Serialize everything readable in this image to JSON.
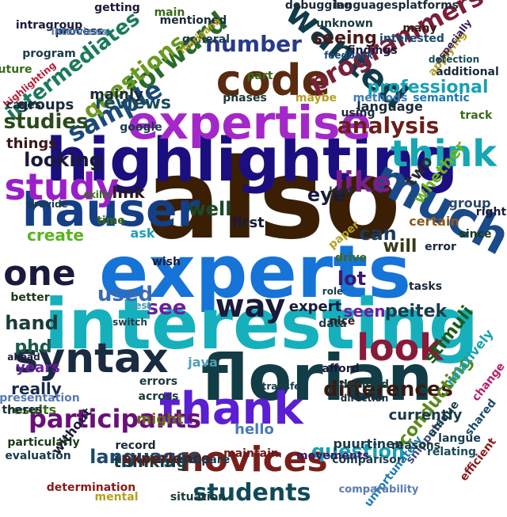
{
  "words": [
    {
      "text": "also",
      "color": "#3a1f04"
    },
    {
      "text": "experts",
      "color": "#1673d8"
    },
    {
      "text": "interesting",
      "color": "#16b0bd"
    },
    {
      "text": "highlighting",
      "color": "#1b0f80"
    },
    {
      "text": "florian",
      "color": "#123c46"
    },
    {
      "text": "expertise",
      "color": "#a428c8"
    },
    {
      "text": "much",
      "color": "#1a4a8a"
    },
    {
      "text": "hauser",
      "color": "#143e86"
    },
    {
      "text": "code",
      "color": "#5a2b10"
    },
    {
      "text": "think",
      "color": "#17a6b4"
    },
    {
      "text": "thank",
      "color": "#5a1fd2"
    },
    {
      "text": "syntax",
      "color": "#1a2a40"
    },
    {
      "text": "study",
      "color": "#9a1fc8"
    },
    {
      "text": "novices",
      "color": "#7a1e1a"
    },
    {
      "text": "look",
      "color": "#8a1a3a"
    },
    {
      "text": "wanted",
      "color": "#113a4c"
    },
    {
      "text": "one",
      "color": "#1a1a40"
    },
    {
      "text": "way",
      "color": "#1a1a3a"
    },
    {
      "text": "like",
      "color": "#7a1f8a"
    },
    {
      "text": "forward",
      "color": "#2a6a2a"
    },
    {
      "text": "sample",
      "color": "#1a4a7a"
    },
    {
      "text": "participants",
      "color": "#6a0f7a"
    },
    {
      "text": "students",
      "color": "#0f4a5a"
    },
    {
      "text": "differences",
      "color": "#3a1a10"
    },
    {
      "text": "questions",
      "color": "#6a9a1f"
    },
    {
      "text": "programmers",
      "color": "#7a1f3a"
    },
    {
      "text": "analysis",
      "color": "#6a1f1a"
    },
    {
      "text": "number",
      "color": "#2a3a8a"
    },
    {
      "text": "intermediates",
      "color": "#1a7a5a"
    },
    {
      "text": "professional",
      "color": "#1aa0b4"
    },
    {
      "text": "languages",
      "color": "#1a4a6a"
    },
    {
      "text": "question",
      "color": "#1aa0b4"
    },
    {
      "text": "conducting",
      "color": "#5a8a1a"
    },
    {
      "text": "studies",
      "color": "#2a4a1a"
    },
    {
      "text": "looking",
      "color": "#1a1a3a"
    },
    {
      "text": "seeing",
      "color": "#4a1a1a"
    },
    {
      "text": "peitek",
      "color": "#1a3a4a"
    },
    {
      "text": "used",
      "color": "#3a6ab4"
    },
    {
      "text": "see",
      "color": "#6a1fa0"
    },
    {
      "text": "can",
      "color": "#1a3a5a"
    },
    {
      "text": "eye",
      "color": "#1a1a3a"
    },
    {
      "text": "well",
      "color": "#1a4a2a"
    },
    {
      "text": "hand",
      "color": "#1a3a3a"
    },
    {
      "text": "phd",
      "color": "#1a5a4a"
    },
    {
      "text": "lot",
      "color": "#3a1a6a"
    },
    {
      "text": "will",
      "color": "#3a3a1a"
    },
    {
      "text": "reviews",
      "color": "#1a4a5a"
    },
    {
      "text": "stimuli",
      "color": "#1a5a1a"
    },
    {
      "text": "whether",
      "color": "#6ab41f"
    },
    {
      "text": "two",
      "color": "#2a2a2a"
    },
    {
      "text": "really",
      "color": "#1a2a4a"
    },
    {
      "text": "expert",
      "color": "#1a1a3a"
    },
    {
      "text": "thinking",
      "color": "#1a3a3a"
    },
    {
      "text": "experience",
      "color": "#5a1a1a"
    },
    {
      "text": "create",
      "color": "#5ab41f"
    },
    {
      "text": "link",
      "color": "#2a1a1a"
    },
    {
      "text": "years",
      "color": "#6a1fa0"
    },
    {
      "text": "relatively",
      "color": "#1aa0b4"
    },
    {
      "text": "currently",
      "color": "#1a3a4a"
    },
    {
      "text": "certain",
      "color": "#8a5a1a"
    },
    {
      "text": "mainly",
      "color": "#1a2a3a"
    },
    {
      "text": "groups",
      "color": "#1a2a3a"
    },
    {
      "text": "things",
      "color": "#3a1a1a"
    },
    {
      "text": "first",
      "color": "#1a1a3a"
    },
    {
      "text": "seen",
      "color": "#6a1fa0"
    },
    {
      "text": "language",
      "color": "#1a2a3a"
    },
    {
      "text": "might",
      "color": "#6a6a1a"
    },
    {
      "text": "java",
      "color": "#4aa0b4"
    },
    {
      "text": "hello",
      "color": "#4a7ab4"
    },
    {
      "text": "without",
      "color": "#1a1a3a"
    },
    {
      "text": "results",
      "color": "#3a6a1a"
    },
    {
      "text": "ask",
      "color": "#1aa0b4"
    },
    {
      "text": "comparison",
      "color": "#1a3a4a"
    },
    {
      "text": "puurtinen",
      "color": "#1a3a4a"
    },
    {
      "text": "maintain",
      "color": "#6a1a1a"
    },
    {
      "text": "movements",
      "color": "#3a1a5a"
    },
    {
      "text": "compare",
      "color": "#1a3a4a"
    },
    {
      "text": "situation",
      "color": "#1a3a3a"
    },
    {
      "text": "mental",
      "color": "#b4a01f"
    },
    {
      "text": "determination",
      "color": "#8a1a1a"
    },
    {
      "text": "unfortunately",
      "color": "#1a7ab4"
    },
    {
      "text": "comparability",
      "color": "#5a7ab4"
    },
    {
      "text": "snippets",
      "color": "#3a4a7a"
    },
    {
      "text": "reasons",
      "color": "#1a3a3a"
    },
    {
      "text": "relating",
      "color": "#1a4a5a"
    },
    {
      "text": "efficient",
      "color": "#8a1a1a"
    },
    {
      "text": "unique",
      "color": "#1a3a4a"
    },
    {
      "text": "shared",
      "color": "#1a4a6a"
    },
    {
      "text": "change",
      "color": "#b41f6a"
    },
    {
      "text": "langue",
      "color": "#1a3a4a"
    },
    {
      "text": "group",
      "color": "#2a4a6a"
    },
    {
      "text": "error",
      "color": "#1a2a3a"
    },
    {
      "text": "right",
      "color": "#1a1a3a"
    },
    {
      "text": "since",
      "color": "#1a3a1a"
    },
    {
      "text": "decided",
      "color": "#1a3a3a"
    },
    {
      "text": "across",
      "color": "#1a3a3a"
    },
    {
      "text": "errors",
      "color": "#1a3a3a"
    },
    {
      "text": "record",
      "color": "#1a2a3a"
    },
    {
      "text": "particularly",
      "color": "#1a3a1a"
    },
    {
      "text": "evaluation",
      "color": "#1a3a4a"
    },
    {
      "text": "presentation",
      "color": "#5a7ab4"
    },
    {
      "text": "theres",
      "color": "#1a2a3a"
    },
    {
      "text": "programmers2",
      "color": "#7a1f3a"
    },
    {
      "text": "getting",
      "color": "#1a1a3a"
    },
    {
      "text": "mentioned",
      "color": "#1a2a3a"
    },
    {
      "text": "general",
      "color": "#1a3a4a"
    },
    {
      "text": "process",
      "color": "#1a2a3a"
    },
    {
      "text": "intragroup",
      "color": "#1a1a3a"
    },
    {
      "text": "program",
      "color": "#1a3a4a"
    },
    {
      "text": "interviews",
      "color": "#4a7ab4"
    },
    {
      "text": "main",
      "color": "#3a6a1a"
    },
    {
      "text": "marjaana",
      "color": "#b4a01f"
    },
    {
      "text": "languagesplatforms",
      "color": "#1a2a3a"
    },
    {
      "text": "debugging",
      "color": "#1a2a3a"
    },
    {
      "text": "unknown",
      "color": "#1a3a3a"
    },
    {
      "text": "many",
      "color": "#3a1a1a"
    },
    {
      "text": "findings",
      "color": "#1a1a3a"
    },
    {
      "text": "interested",
      "color": "#1a4a6a"
    },
    {
      "text": "feedback",
      "color": "#1a4a7a"
    },
    {
      "text": "applying",
      "color": "#b4a01f"
    },
    {
      "text": "especially",
      "color": "#3a1a5a"
    },
    {
      "text": "detection",
      "color": "#1a4a5a"
    },
    {
      "text": "additional",
      "color": "#1a2a3a"
    },
    {
      "text": "future",
      "color": "#3a6a1a"
    },
    {
      "text": "highlighting2",
      "color": "#b41f3a"
    },
    {
      "text": "cases",
      "color": "#1a2a3a"
    },
    {
      "text": "methods",
      "color": "#3a7ab4"
    },
    {
      "text": "semantic",
      "color": "#1a7ab4"
    },
    {
      "text": "maybe",
      "color": "#b4a01f"
    },
    {
      "text": "using",
      "color": "#1a2a3a"
    },
    {
      "text": "google",
      "color": "#1a3a4a"
    },
    {
      "text": "phases",
      "color": "#1a3a3a"
    },
    {
      "text": "part",
      "color": "#3a6a1a"
    },
    {
      "text": "track",
      "color": "#3a6a1a"
    },
    {
      "text": "data",
      "color": "#1a3a4a"
    },
    {
      "text": "role",
      "color": "#1a3a4a"
    },
    {
      "text": "kind",
      "color": "#1a2a3a"
    },
    {
      "text": "nice",
      "color": "#3a1a1a"
    },
    {
      "text": "drive",
      "color": "#3a6a1a"
    },
    {
      "text": "paper",
      "color": "#b4a01f"
    },
    {
      "text": "afford",
      "color": "#1a1a3a"
    },
    {
      "text": "transfer",
      "color": "#1a3a4a"
    },
    {
      "text": "direction",
      "color": "#1a2a3a"
    },
    {
      "text": "tasks",
      "color": "#1a2a3a"
    },
    {
      "text": "test",
      "color": "#3aa0b4"
    },
    {
      "text": "switch",
      "color": "#1a3a4a"
    },
    {
      "text": "better",
      "color": "#1a3a1a"
    },
    {
      "text": "wish",
      "color": "#1a1a3a"
    },
    {
      "text": "time",
      "color": "#3a6a1a"
    },
    {
      "text": "skills",
      "color": "#3a6a1a"
    },
    {
      "text": "provide",
      "color": "#1a3a4a"
    },
    {
      "text": "ahead",
      "color": "#1a1a3a"
    }
  ]
}
